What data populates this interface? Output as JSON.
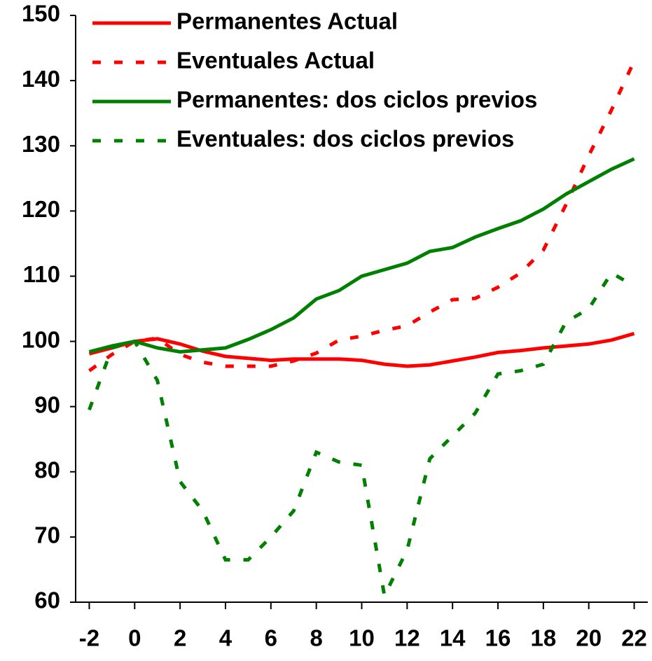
{
  "chart_data": {
    "type": "line",
    "x": [
      -2,
      -1,
      0,
      1,
      2,
      3,
      4,
      5,
      6,
      7,
      8,
      9,
      10,
      11,
      12,
      13,
      14,
      15,
      16,
      17,
      18,
      19,
      20,
      21,
      22
    ],
    "xlim": [
      -2.6,
      22.6
    ],
    "xticks": [
      -2,
      0,
      2,
      4,
      6,
      8,
      10,
      12,
      14,
      16,
      18,
      20,
      22
    ],
    "ylim": [
      60,
      150
    ],
    "yticks": [
      60,
      70,
      80,
      90,
      100,
      110,
      120,
      130,
      140,
      150
    ],
    "legend": "top-left",
    "series": [
      {
        "name": "Permanentes Actual",
        "color": "#ff0000",
        "dash": false,
        "values": [
          98.1,
          99,
          100,
          100.4,
          99.6,
          98.5,
          97.7,
          97.4,
          97.1,
          97.3,
          97.3,
          97.3,
          97.1,
          96.5,
          96.2,
          96.4,
          97,
          97.6,
          98.3,
          98.6,
          99,
          99.3,
          99.6,
          100.2,
          101.2
        ]
      },
      {
        "name": "Eventuales Actual",
        "color": "#ff0000",
        "dash": true,
        "values": [
          95.5,
          98,
          100,
          100.5,
          98,
          96.8,
          96.2,
          96.2,
          96.2,
          97,
          98.2,
          100.2,
          100.8,
          101.7,
          102.4,
          104.5,
          106.4,
          106.6,
          108.3,
          110.5,
          114,
          121,
          128.5,
          135.5,
          143
        ]
      },
      {
        "name": "Permanentes: dos ciclos previos",
        "color": "#008000",
        "dash": false,
        "values": [
          98.4,
          99.3,
          100,
          99,
          98.4,
          98.7,
          99,
          100.3,
          101.8,
          103.6,
          106.5,
          107.8,
          110,
          111,
          112,
          113.8,
          114.4,
          116,
          117.3,
          118.5,
          120.3,
          122.6,
          124.5,
          126.4,
          128
        ]
      },
      {
        "name": "Eventuales: dos ciclos previos",
        "color": "#008000",
        "dash": true,
        "values": [
          89.5,
          99,
          100,
          94,
          78.5,
          74,
          66.5,
          66.5,
          70,
          74,
          83,
          81.5,
          81,
          61,
          68,
          82,
          85.5,
          89,
          95,
          95.5,
          96.5,
          103,
          105,
          110.5,
          108.5
        ]
      }
    ]
  }
}
